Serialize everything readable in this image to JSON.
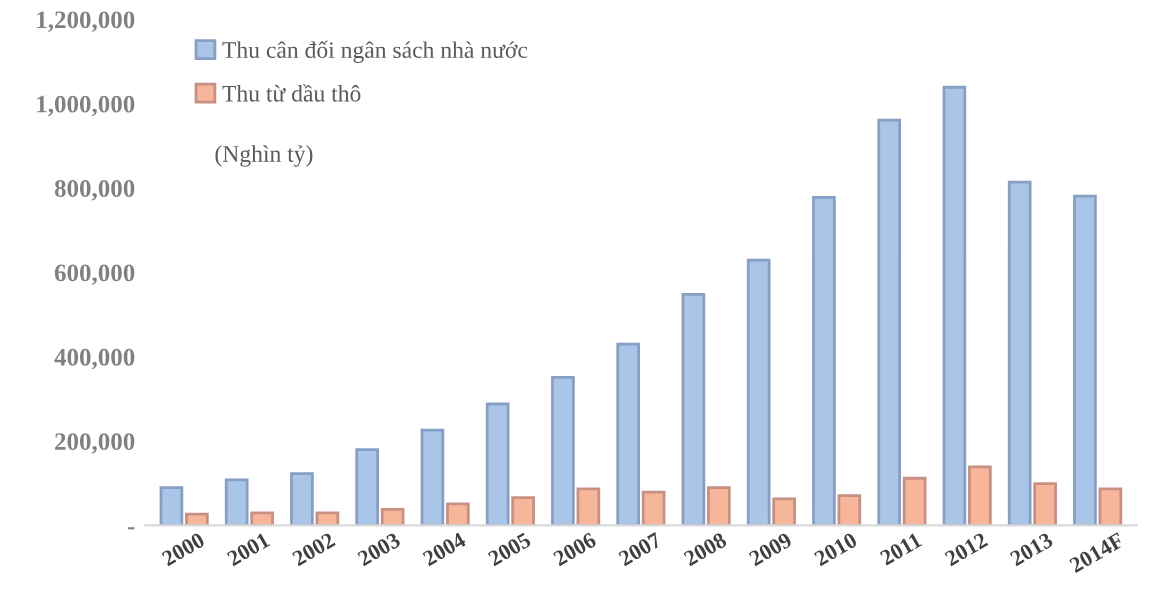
{
  "chart_data": {
    "type": "bar",
    "categories": [
      "2000",
      "2001",
      "2002",
      "2003",
      "2004",
      "2005",
      "2006",
      "2007",
      "2008",
      "2009",
      "2010",
      "2011",
      "2012",
      "2013",
      "2014F"
    ],
    "series": [
      {
        "name": "Thu cân đối ngân sách nhà nước",
        "color": "#a9c6e8",
        "values": [
          90000,
          108000,
          123000,
          180000,
          226000,
          288000,
          351000,
          430000,
          548000,
          629000,
          778000,
          961000,
          1039000,
          814000,
          781000
        ]
      },
      {
        "name": "Thu từ dầu thô",
        "color": "#f7b59a",
        "values": [
          27000,
          30000,
          30000,
          38000,
          51000,
          66000,
          87000,
          79000,
          90000,
          63000,
          71000,
          112000,
          139000,
          99000,
          87000
        ]
      }
    ],
    "annotations": [
      "(Nghìn tỷ)"
    ],
    "ylim": [
      0,
      1200000
    ],
    "yticks": [
      {
        "value": 0,
        "label": "-"
      },
      {
        "value": 200000,
        "label": "200,000"
      },
      {
        "value": 400000,
        "label": "400,000"
      },
      {
        "value": 600000,
        "label": "600,000"
      },
      {
        "value": 800000,
        "label": "800,000"
      },
      {
        "value": 1000000,
        "label": "1,000,000"
      },
      {
        "value": 1200000,
        "label": "1,200,000"
      }
    ],
    "grid": false,
    "legend": "top left"
  }
}
